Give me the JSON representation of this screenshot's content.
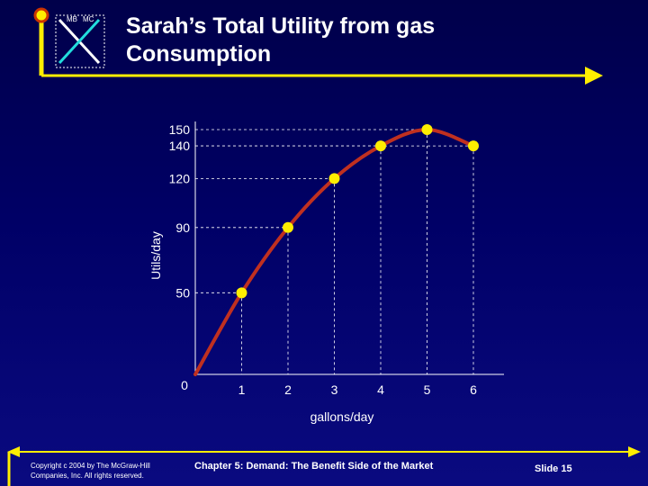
{
  "slide": {
    "title": "Sarah’s Total Utility from gas Consumption",
    "logo_labels": [
      "MB",
      "MC"
    ],
    "copyright": "Copyright c 2004 by The McGraw-Hill Companies, Inc. All rights reserved.",
    "chapter": "Chapter 5: Demand: The Benefit Side of the Market",
    "slide_number": "Slide 15"
  },
  "colors": {
    "background": "#000066",
    "accent_yellow": "#ffee00",
    "curve": "#c03020",
    "text": "#ffffff"
  },
  "chart_data": {
    "type": "line",
    "title": "",
    "xlabel": "gallons/day",
    "ylabel": "Utils/day",
    "x": [
      0,
      1,
      2,
      3,
      4,
      5,
      6
    ],
    "x_tick_labels": [
      "0",
      "1",
      "2",
      "3",
      "4",
      "5",
      "6"
    ],
    "y_tick_values": [
      50,
      90,
      120,
      140,
      150
    ],
    "y_tick_labels": [
      "50",
      "90",
      "120",
      "140",
      "150"
    ],
    "series": [
      {
        "values": [
          0,
          50,
          90,
          120,
          140,
          150,
          140
        ]
      }
    ],
    "ylim": [
      0,
      150
    ],
    "xlim": [
      0,
      6
    ],
    "grid": "dashed guide lines from points to axes",
    "legend": "none"
  }
}
